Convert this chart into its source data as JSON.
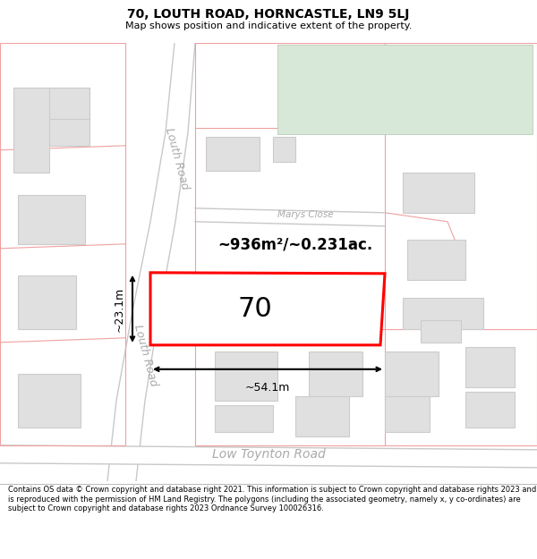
{
  "title": "70, LOUTH ROAD, HORNCASTLE, LN9 5LJ",
  "subtitle": "Map shows position and indicative extent of the property.",
  "footer": "Contains OS data © Crown copyright and database right 2021. This information is subject to Crown copyright and database rights 2023 and is reproduced with the permission of HM Land Registry. The polygons (including the associated geometry, namely x, y co-ordinates) are subject to Crown copyright and database rights 2023 Ordnance Survey 100026316.",
  "map_bg": "#f8f8f8",
  "road_fill": "#ffffff",
  "road_line_color": "#c8c8c8",
  "road_line_lw": 1.0,
  "boundary_color": "#f0a0a0",
  "boundary_lw": 0.8,
  "building_fill": "#e0e0e0",
  "building_edge": "#cccccc",
  "building_lw": 0.8,
  "green_fill": "#d8e8d8",
  "green_edge": "#b8ccb8",
  "highlight_edge": "#ff0000",
  "highlight_lw": 2.2,
  "area_text": "~936m²/~0.231ac.",
  "width_text": "~54.1m",
  "height_text": "~23.1m",
  "number_text": "70",
  "road_label_louth": "Louth Road",
  "road_label_low": "Low Toynton Road",
  "road_label_marys": "Marys Close",
  "road_label_color": "#aaaaaa",
  "title_fontsize": 10,
  "subtitle_fontsize": 8,
  "footer_fontsize": 6.0
}
